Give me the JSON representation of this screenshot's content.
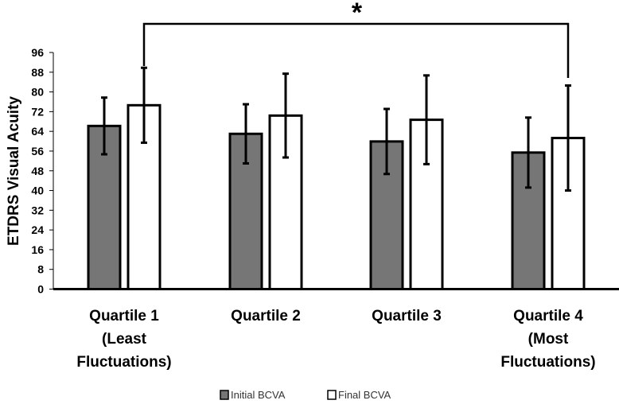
{
  "chart_data": {
    "type": "bar",
    "title": "",
    "xlabel": "",
    "ylabel": "ETDRS Visual Acuity",
    "ylim": [
      0,
      96
    ],
    "yticks": [
      0,
      8,
      16,
      24,
      32,
      40,
      48,
      56,
      64,
      72,
      80,
      88,
      96
    ],
    "grid": false,
    "categories": [
      [
        "Quartile 1",
        "(Least",
        "Fluctuations)"
      ],
      [
        "Quartile 2"
      ],
      [
        "Quartile 3"
      ],
      [
        "Quartile 4",
        "(Most",
        "Fluctuations)"
      ]
    ],
    "series": [
      {
        "name": "Initial BCVA",
        "color": "#767676",
        "values": [
          66.2,
          63.0,
          59.9,
          55.4
        ],
        "error": [
          11.5,
          12.0,
          13.2,
          14.2
        ]
      },
      {
        "name": "Final BCVA",
        "color": "#ffffff",
        "values": [
          74.6,
          70.4,
          68.7,
          61.3
        ],
        "error": [
          15.2,
          17.0,
          18.0,
          21.3
        ]
      }
    ],
    "legend_position": "bottom",
    "annotation": {
      "text": "*",
      "from_category": 0,
      "to_category": 3,
      "series": "Final BCVA"
    }
  }
}
